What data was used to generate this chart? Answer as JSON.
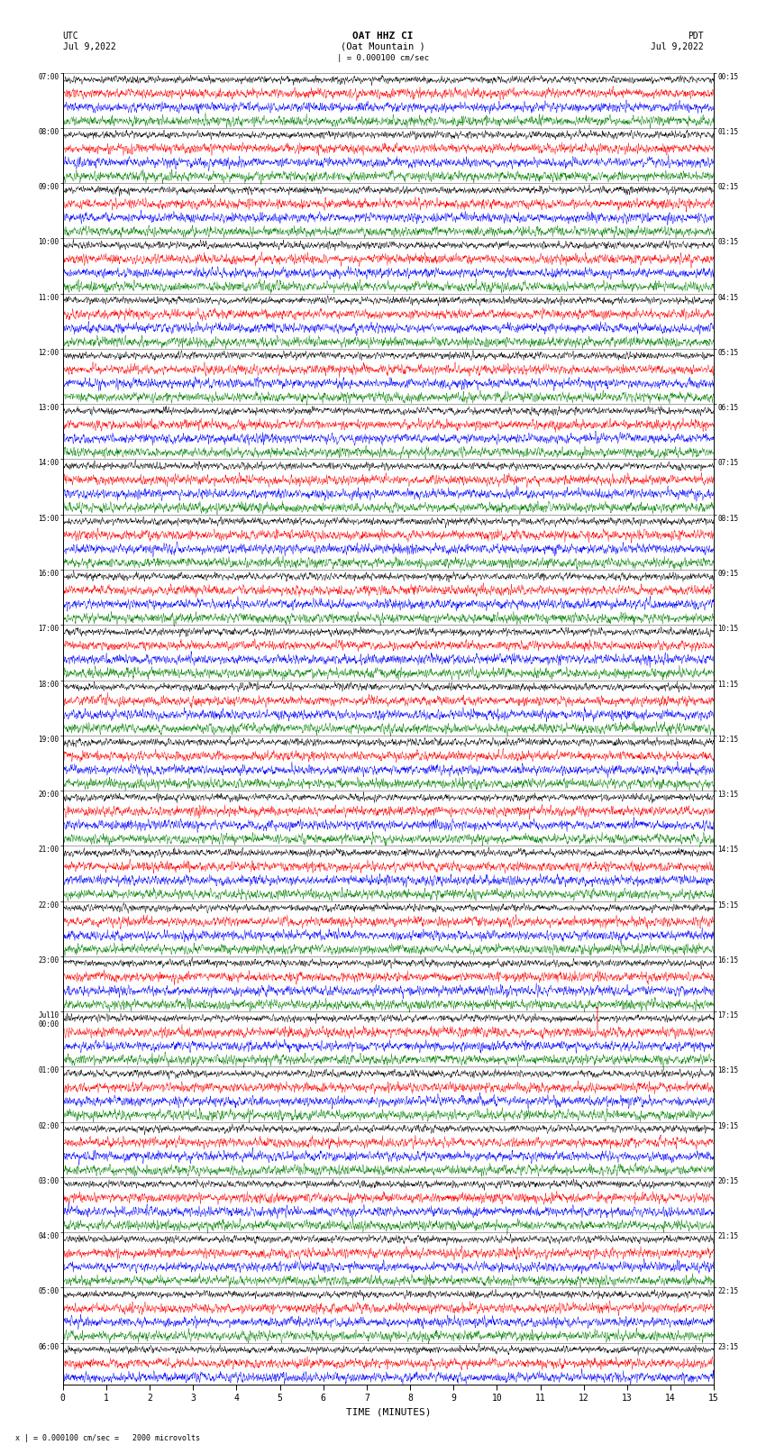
{
  "title_center": "OAT HHZ CI\n(Oat Mountain )",
  "title_left": "UTC\nJul 9,2022",
  "title_right": "PDT\nJul 9,2022",
  "scale_label": "| = 0.000100 cm/sec",
  "bottom_label": "x | = 0.000100 cm/sec =   2000 microvolts",
  "xlabel": "TIME (MINUTES)",
  "xticks": [
    0,
    1,
    2,
    3,
    4,
    5,
    6,
    7,
    8,
    9,
    10,
    11,
    12,
    13,
    14,
    15
  ],
  "left_times": [
    "07:00",
    "",
    "",
    "",
    "08:00",
    "",
    "",
    "",
    "09:00",
    "",
    "",
    "",
    "10:00",
    "",
    "",
    "",
    "11:00",
    "",
    "",
    "",
    "12:00",
    "",
    "",
    "",
    "13:00",
    "",
    "",
    "",
    "14:00",
    "",
    "",
    "",
    "15:00",
    "",
    "",
    "",
    "16:00",
    "",
    "",
    "",
    "17:00",
    "",
    "",
    "",
    "18:00",
    "",
    "",
    "",
    "19:00",
    "",
    "",
    "",
    "20:00",
    "",
    "",
    "",
    "21:00",
    "",
    "",
    "",
    "22:00",
    "",
    "",
    "",
    "23:00",
    "",
    "",
    "",
    "Jul10\n00:00",
    "",
    "",
    "",
    "01:00",
    "",
    "",
    "",
    "02:00",
    "",
    "",
    "",
    "03:00",
    "",
    "",
    "",
    "04:00",
    "",
    "",
    "",
    "05:00",
    "",
    "",
    "",
    "06:00",
    "",
    ""
  ],
  "right_times": [
    "00:15",
    "",
    "",
    "",
    "01:15",
    "",
    "",
    "",
    "02:15",
    "",
    "",
    "",
    "03:15",
    "",
    "",
    "",
    "04:15",
    "",
    "",
    "",
    "05:15",
    "",
    "",
    "",
    "06:15",
    "",
    "",
    "",
    "07:15",
    "",
    "",
    "",
    "08:15",
    "",
    "",
    "",
    "09:15",
    "",
    "",
    "",
    "10:15",
    "",
    "",
    "",
    "11:15",
    "",
    "",
    "",
    "12:15",
    "",
    "",
    "",
    "13:15",
    "",
    "",
    "",
    "14:15",
    "",
    "",
    "",
    "15:15",
    "",
    "",
    "",
    "16:15",
    "",
    "",
    "",
    "17:15",
    "",
    "",
    "",
    "18:15",
    "",
    "",
    "",
    "19:15",
    "",
    "",
    "",
    "20:15",
    "",
    "",
    "",
    "21:15",
    "",
    "",
    "",
    "22:15",
    "",
    "",
    "",
    "23:15",
    "",
    ""
  ],
  "trace_colors": [
    "black",
    "red",
    "blue",
    "green"
  ],
  "n_rows": 95,
  "n_points": 3000,
  "fig_width": 8.5,
  "fig_height": 16.13,
  "bg_color": "white",
  "amplitude_black": 0.28,
  "amplitude_color": 0.38,
  "time_minutes": 15
}
